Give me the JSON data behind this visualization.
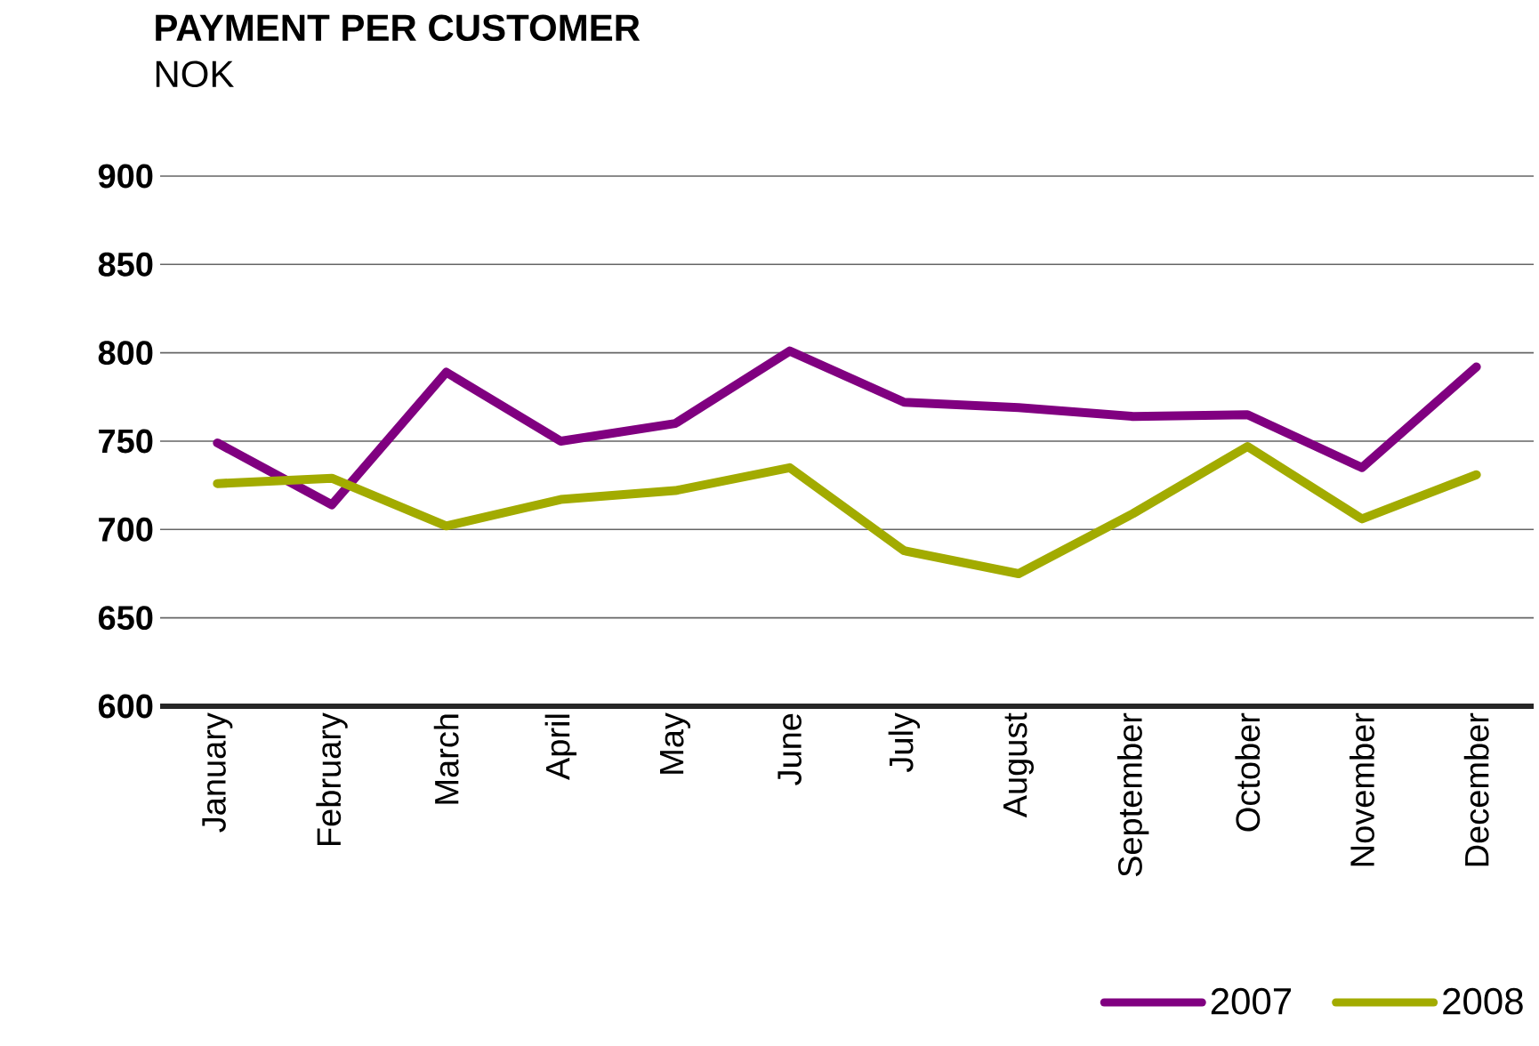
{
  "chart_data": {
    "type": "line",
    "title": "PAYMENT PER CUSTOMER",
    "subtitle": "NOK",
    "categories": [
      "January",
      "February",
      "March",
      "April",
      "May",
      "June",
      "July",
      "August",
      "September",
      "October",
      "November",
      "December"
    ],
    "series": [
      {
        "name": "2007",
        "color": "#800080",
        "values": [
          749,
          714,
          789,
          750,
          760,
          801,
          772,
          769,
          764,
          765,
          735,
          792
        ]
      },
      {
        "name": "2008",
        "color": "#a2ab00",
        "values": [
          726,
          729,
          702,
          717,
          722,
          735,
          688,
          675,
          709,
          747,
          706,
          731
        ]
      }
    ],
    "ylim": [
      600,
      900
    ],
    "yticks": [
      600,
      650,
      700,
      750,
      800,
      850,
      900
    ],
    "grid": "y",
    "legend": "bottom right",
    "line_style": "solid",
    "marker": "none"
  }
}
